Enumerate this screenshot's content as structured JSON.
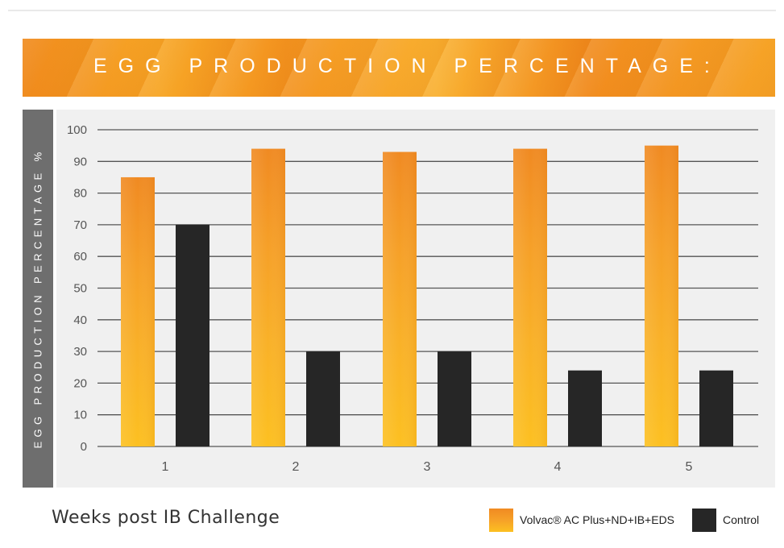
{
  "chart_data": {
    "type": "bar",
    "title": "EGG PRODUCTION PERCENTAGE:",
    "ylabel": "EGG PRODUCTION PERCENTAGE %",
    "xlabel": "Weeks post IB Challenge",
    "categories": [
      "1",
      "2",
      "3",
      "4",
      "5"
    ],
    "series": [
      {
        "name": "Volvac® AC Plus+ND+IB+EDS",
        "values": [
          85,
          94,
          93,
          94,
          95
        ]
      },
      {
        "name": "Control",
        "values": [
          70,
          30,
          30,
          24,
          24
        ]
      }
    ],
    "ylim": [
      0,
      100
    ],
    "yticks": [
      0,
      10,
      20,
      30,
      40,
      50,
      60,
      70,
      80,
      90,
      100
    ],
    "grid": true,
    "legend_position": "bottom-right",
    "colors": {
      "series_1_top": "#f08a22",
      "series_1_bottom": "#fcc021",
      "series_2": "#262626",
      "banner": "#f39a22",
      "ylabel_bar": "#6e6e6e",
      "plot_bg": "#f0f0f0",
      "gridline": "#555555"
    }
  }
}
